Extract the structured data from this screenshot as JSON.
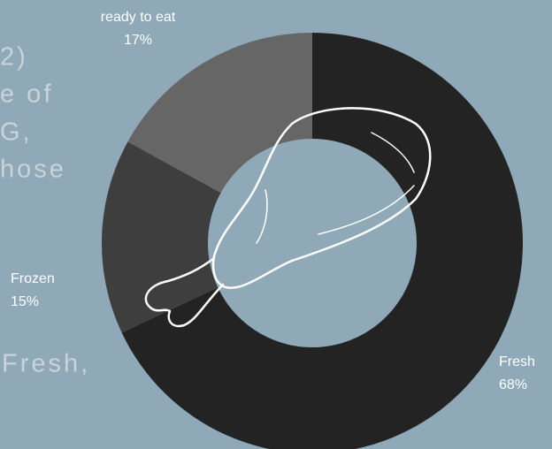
{
  "background_text": [
    "2)",
    "e of",
    "G,",
    "hose",
    "Fresh,"
  ],
  "chart_data": {
    "type": "donut",
    "categories": [
      "Fresh",
      "Frozen",
      "ready to eat"
    ],
    "values": [
      68,
      15,
      17
    ],
    "value_labels": [
      "68%",
      "15%",
      "17%"
    ],
    "colors": [
      "#232323",
      "#3e3e3e",
      "#666666"
    ]
  }
}
